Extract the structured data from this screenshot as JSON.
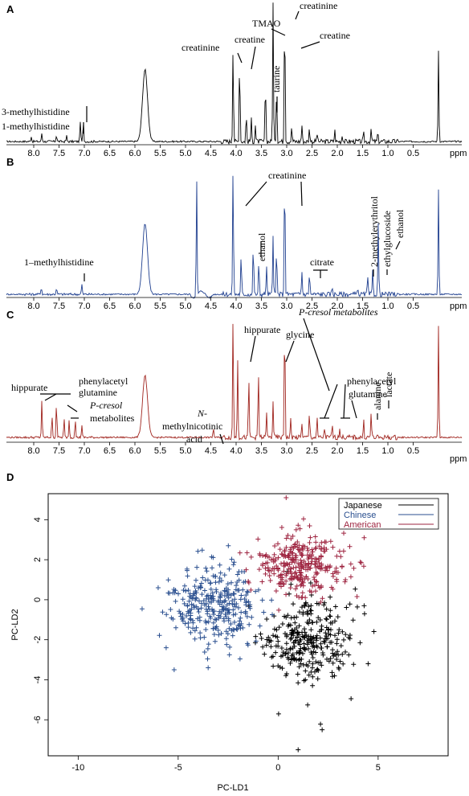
{
  "panels": [
    {
      "id": "A",
      "label": "A",
      "color": "#000000",
      "unit": "ppm",
      "ticks": [
        "8.0",
        "7.5",
        "7.0",
        "6.5",
        "6.0",
        "5.5",
        "5.0",
        "4.5",
        "4.0",
        "3.5",
        "3.0",
        "2.5",
        "2.0",
        "1.5",
        "1.0",
        "0.5"
      ],
      "annotations": [
        {
          "text": "3-methylhistidine"
        },
        {
          "text": "1-methylhistidine"
        },
        {
          "text": "creatinine"
        },
        {
          "text": "creatine"
        },
        {
          "text": "TMAO"
        },
        {
          "text": "taurine"
        },
        {
          "text": "creatinine"
        },
        {
          "text": "creatine"
        }
      ]
    },
    {
      "id": "B",
      "label": "B",
      "color": "#1f3f8f",
      "unit": "ppm",
      "ticks": [
        "8.0",
        "7.5",
        "7.0",
        "6.5",
        "6.0",
        "5.5",
        "5.0",
        "4.5",
        "4.0",
        "3.5",
        "3.0",
        "2.5",
        "2.0",
        "1.5",
        "1.0",
        "0.5"
      ],
      "annotations": [
        {
          "text": "creatinine"
        },
        {
          "text": "ethanol"
        },
        {
          "text": "citrate"
        },
        {
          "text": "1–methylhistidine"
        },
        {
          "text": "2-methylerythritol"
        },
        {
          "text": "ethylglucoside"
        },
        {
          "text": "ethanol"
        }
      ]
    },
    {
      "id": "C",
      "label": "C",
      "color": "#a0241e",
      "unit": "ppm",
      "ticks": [
        "8.0",
        "7.5",
        "7.0",
        "6.5",
        "6.0",
        "5.5",
        "5.0",
        "4.5",
        "4.0",
        "3.5",
        "3.0",
        "2.5",
        "2.0",
        "1.5",
        "1.0",
        "0.5"
      ],
      "annotations": [
        {
          "text": "hippurate"
        },
        {
          "text": "phenylacetyl"
        },
        {
          "text": "glutamine"
        },
        {
          "text": "P-cresol"
        },
        {
          "text": "metabolites"
        },
        {
          "text": "N-"
        },
        {
          "text": "methylnicotinic"
        },
        {
          "text": "acid"
        },
        {
          "text": "hippurate"
        },
        {
          "text": "glycine"
        },
        {
          "text": "P-cresol metabolites"
        },
        {
          "text": "phenylacetyl"
        },
        {
          "text": "glutamine"
        },
        {
          "text": "alanine"
        },
        {
          "text": "lactate"
        }
      ]
    }
  ],
  "chart_data": [
    {
      "type": "line",
      "panel": "A",
      "xlabel": "ppm",
      "xlim": [
        8.3,
        -0.1
      ],
      "series": [
        {
          "peaks": [
            {
              "ppm": 8.05,
              "height": 0.04
            },
            {
              "ppm": 7.84,
              "height": 0.06
            },
            {
              "ppm": 7.55,
              "height": 0.05
            },
            {
              "ppm": 7.35,
              "height": 0.04
            },
            {
              "ppm": 7.08,
              "height": 0.15
            },
            {
              "ppm": 7.02,
              "height": 0.14
            },
            {
              "ppm": 5.8,
              "height": 0.52,
              "width": 0.07
            },
            {
              "ppm": 4.06,
              "height": 0.7
            },
            {
              "ppm": 3.93,
              "height": 0.62
            },
            {
              "ppm": 3.8,
              "height": 0.2
            },
            {
              "ppm": 3.7,
              "height": 0.16
            },
            {
              "ppm": 3.62,
              "height": 0.12
            },
            {
              "ppm": 3.42,
              "height": 0.45
            },
            {
              "ppm": 3.27,
              "height": 1.0
            },
            {
              "ppm": 3.2,
              "height": 0.4
            },
            {
              "ppm": 3.04,
              "height": 1.0
            },
            {
              "ppm": 2.9,
              "height": 0.1
            },
            {
              "ppm": 2.7,
              "height": 0.12
            },
            {
              "ppm": 2.55,
              "height": 0.1
            },
            {
              "ppm": 2.4,
              "height": 0.06
            },
            {
              "ppm": 2.05,
              "height": 0.08
            },
            {
              "ppm": 1.9,
              "height": 0.05
            },
            {
              "ppm": 1.48,
              "height": 0.06
            },
            {
              "ppm": 1.33,
              "height": 0.08
            },
            {
              "ppm": 1.2,
              "height": 0.06
            },
            {
              "ppm": 0.0,
              "height": 0.66
            }
          ]
        }
      ]
    },
    {
      "type": "line",
      "panel": "B",
      "xlabel": "ppm",
      "xlim": [
        8.3,
        -0.1
      ],
      "series": [
        {
          "peaks": [
            {
              "ppm": 7.85,
              "height": 0.06
            },
            {
              "ppm": 7.55,
              "height": 0.05
            },
            {
              "ppm": 7.05,
              "height": 0.08
            },
            {
              "ppm": 5.8,
              "height": 0.54,
              "width": 0.07
            },
            {
              "ppm": 4.78,
              "height": 0.9
            },
            {
              "ppm": 4.06,
              "height": 1.0
            },
            {
              "ppm": 3.9,
              "height": 0.3
            },
            {
              "ppm": 3.66,
              "height": 0.4
            },
            {
              "ppm": 3.55,
              "height": 0.25
            },
            {
              "ppm": 3.4,
              "height": 0.22
            },
            {
              "ppm": 3.27,
              "height": 0.45
            },
            {
              "ppm": 3.2,
              "height": 0.35
            },
            {
              "ppm": 3.04,
              "height": 1.0
            },
            {
              "ppm": 2.7,
              "height": 0.18
            },
            {
              "ppm": 2.55,
              "height": 0.17
            },
            {
              "ppm": 2.1,
              "height": 0.06
            },
            {
              "ppm": 1.6,
              "height": 0.05
            },
            {
              "ppm": 1.4,
              "height": 0.14
            },
            {
              "ppm": 1.3,
              "height": 0.18
            },
            {
              "ppm": 1.19,
              "height": 0.55
            },
            {
              "ppm": 0.0,
              "height": 0.8
            }
          ]
        }
      ]
    },
    {
      "type": "line",
      "panel": "C",
      "xlabel": "ppm",
      "xlim": [
        8.3,
        -0.1
      ],
      "series": [
        {
          "peaks": [
            {
              "ppm": 7.84,
              "height": 0.3
            },
            {
              "ppm": 7.64,
              "height": 0.18
            },
            {
              "ppm": 7.55,
              "height": 0.3
            },
            {
              "ppm": 7.4,
              "height": 0.15
            },
            {
              "ppm": 7.3,
              "height": 0.14
            },
            {
              "ppm": 7.18,
              "height": 0.15
            },
            {
              "ppm": 7.05,
              "height": 0.1
            },
            {
              "ppm": 5.8,
              "height": 0.5,
              "width": 0.07
            },
            {
              "ppm": 4.45,
              "height": 0.08
            },
            {
              "ppm": 4.06,
              "height": 1.0
            },
            {
              "ppm": 3.97,
              "height": 0.65
            },
            {
              "ppm": 3.75,
              "height": 0.5
            },
            {
              "ppm": 3.56,
              "height": 0.55
            },
            {
              "ppm": 3.4,
              "height": 0.2
            },
            {
              "ppm": 3.27,
              "height": 0.3
            },
            {
              "ppm": 3.04,
              "height": 1.0
            },
            {
              "ppm": 2.92,
              "height": 0.15
            },
            {
              "ppm": 2.7,
              "height": 0.12
            },
            {
              "ppm": 2.55,
              "height": 0.2
            },
            {
              "ppm": 2.4,
              "height": 0.15
            },
            {
              "ppm": 2.25,
              "height": 0.08
            },
            {
              "ppm": 2.1,
              "height": 0.1
            },
            {
              "ppm": 1.95,
              "height": 0.08
            },
            {
              "ppm": 1.48,
              "height": 0.14
            },
            {
              "ppm": 1.33,
              "height": 0.2
            },
            {
              "ppm": 0.0,
              "height": 0.9
            }
          ]
        }
      ]
    },
    {
      "type": "scatter",
      "panel": "D",
      "xlabel": "PC-LD1",
      "ylabel": "PC-LD2",
      "xlim": [
        -11.5,
        8.5
      ],
      "ylim": [
        -7.8,
        5.3
      ],
      "xticks": [
        -10,
        -5,
        0,
        5
      ],
      "yticks": [
        4,
        2,
        0,
        -2,
        -4,
        -6
      ],
      "legend_position": "top-right",
      "grid": false,
      "series": [
        {
          "name": "Japanese",
          "color": "#000000",
          "n": 300,
          "center": [
            1.5,
            -2.0
          ],
          "spread": [
            1.1,
            1.1
          ],
          "outliers": [
            [
              1.0,
              -7.5
            ],
            [
              2.2,
              -6.5
            ],
            [
              4.3,
              -0.3
            ],
            [
              4.5,
              -3.2
            ]
          ]
        },
        {
          "name": "Chinese",
          "color": "#2a4f8f",
          "n": 300,
          "center": [
            -3.2,
            -0.2
          ],
          "spread": [
            1.1,
            1.0
          ],
          "outliers": [
            [
              -5.6,
              -2.4
            ],
            [
              -6.0,
              0.6
            ],
            [
              -5.2,
              -3.5
            ],
            [
              -3.5,
              -3.4
            ]
          ]
        },
        {
          "name": "American",
          "color": "#9e2440",
          "n": 300,
          "center": [
            1.1,
            1.8
          ],
          "spread": [
            1.1,
            0.8
          ],
          "outliers": [
            [
              0.4,
              5.1
            ],
            [
              -1.6,
              1.5
            ],
            [
              -0.8,
              0.9
            ],
            [
              4.3,
              3.1
            ]
          ]
        }
      ]
    }
  ]
}
